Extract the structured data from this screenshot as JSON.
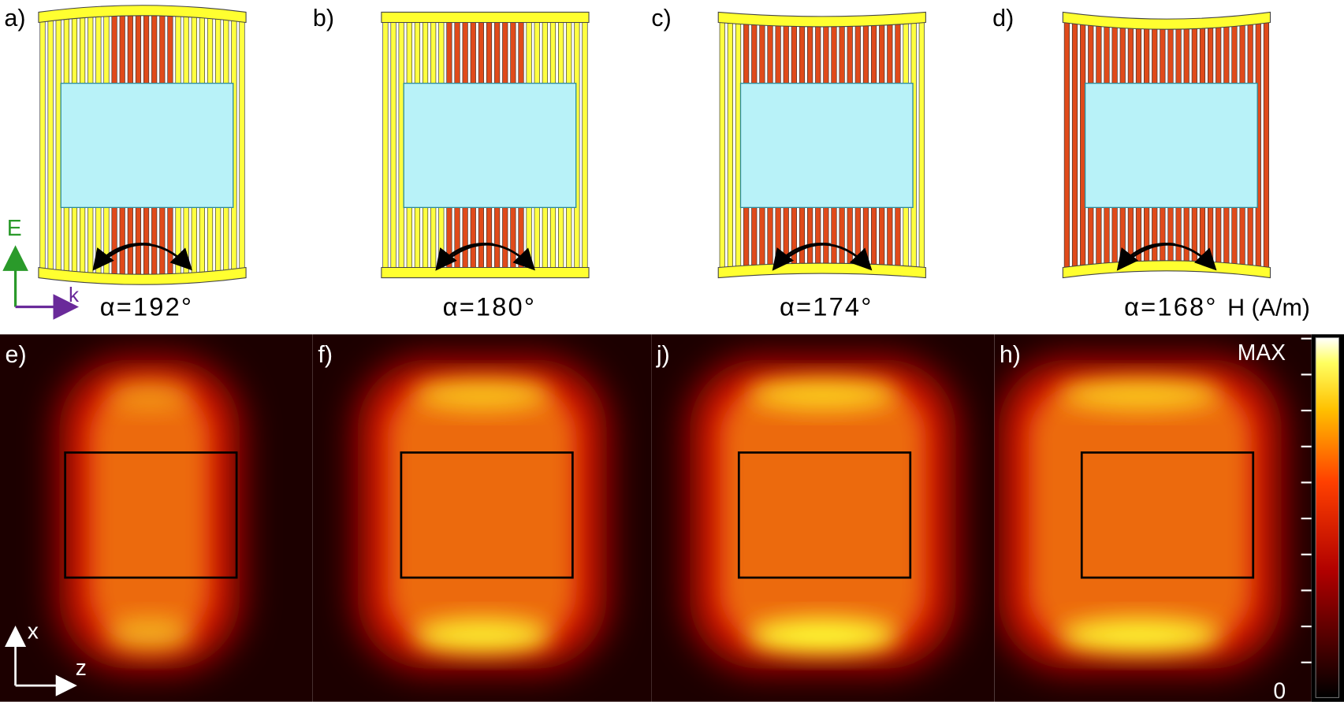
{
  "top_panels": [
    {
      "label": "a)",
      "angle": "α=192°"
    },
    {
      "label": "b)",
      "angle": "α=180°"
    },
    {
      "label": "c)",
      "angle": "α=174°"
    },
    {
      "label": "d)",
      "angle": "α=168°"
    }
  ],
  "bottom_panels": [
    {
      "label": "e)"
    },
    {
      "label": "f)"
    },
    {
      "label": "j)"
    },
    {
      "label": "h)"
    }
  ],
  "top_axes": {
    "vertical": "E",
    "horizontal": "k"
  },
  "bottom_axes": {
    "vertical": "x",
    "horizontal": "z"
  },
  "colorbar": {
    "title": "H (A/m)",
    "max_label": "MAX",
    "min_label": "0"
  }
}
